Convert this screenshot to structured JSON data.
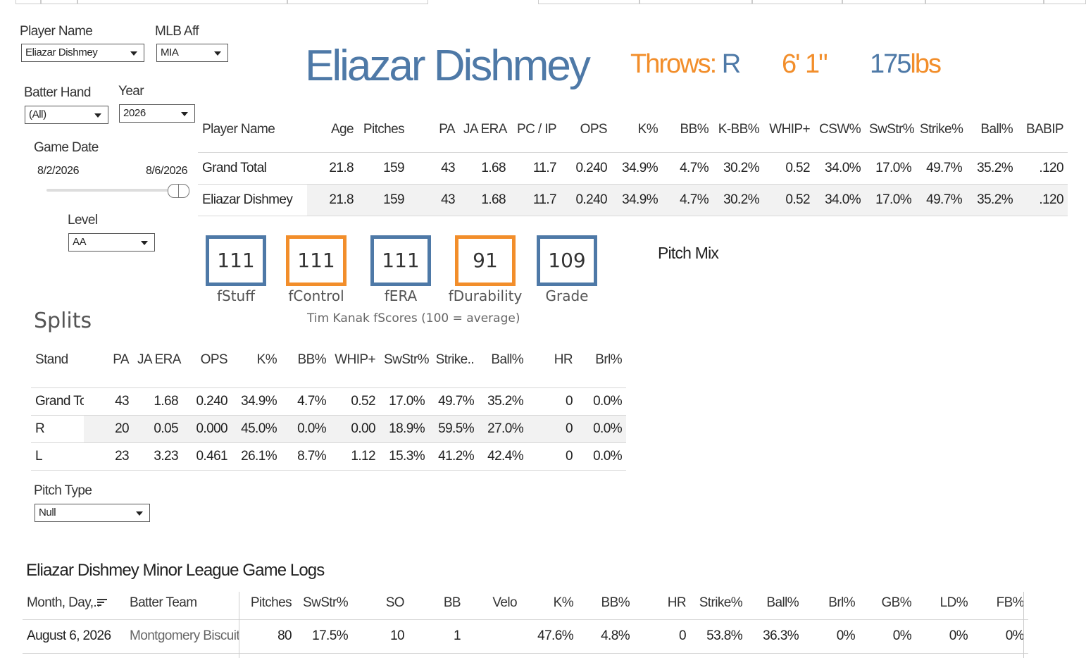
{
  "filters": {
    "player_name": {
      "label": "Player Name",
      "value": "Eliazar Dishmey"
    },
    "mlb_aff": {
      "label": "MLB Aff",
      "value": "MIA"
    },
    "batter_hand": {
      "label": "Batter Hand",
      "value": "(All)"
    },
    "year": {
      "label": "Year",
      "value": "2026"
    },
    "game_date": {
      "label": "Game Date",
      "start": "8/2/2026",
      "end": "8/6/2026"
    },
    "level": {
      "label": "Level",
      "value": "AA"
    },
    "pitch_type": {
      "label": "Pitch Type",
      "value": "Null"
    }
  },
  "player": {
    "name": "Eliazar Dishmey",
    "throws_label": "Throws:",
    "throws": "R",
    "height": "6' 1\"",
    "weight": "175",
    "weight_unit": "lbs"
  },
  "summary_table": {
    "columns": [
      "Player Name",
      "Age",
      "Pitches",
      "PA",
      "JA ERA",
      "PC / IP",
      "OPS",
      "K%",
      "BB%",
      "K-BB%",
      "WHIP+",
      "CSW%",
      "SwStr%",
      "Strike%",
      "Ball%",
      "BABIP"
    ],
    "rows": [
      [
        "Grand Total",
        "21.8",
        "159",
        "43",
        "1.68",
        "11.7",
        "0.240",
        "34.9%",
        "4.7%",
        "30.2%",
        "0.52",
        "34.0%",
        "17.0%",
        "49.7%",
        "35.2%",
        ".120"
      ],
      [
        "Eliazar Dishmey",
        "21.8",
        "159",
        "43",
        "1.68",
        "11.7",
        "0.240",
        "34.9%",
        "4.7%",
        "30.2%",
        "0.52",
        "34.0%",
        "17.0%",
        "49.7%",
        "35.2%",
        ".120"
      ]
    ]
  },
  "fscores": {
    "items": [
      {
        "label": "fStuff",
        "value": 111,
        "color": "#4e79a7"
      },
      {
        "label": "fControl",
        "value": 111,
        "color": "#f28e2b"
      },
      {
        "label": "fERA",
        "value": 111,
        "color": "#4e79a7"
      },
      {
        "label": "fDurability",
        "value": 91,
        "color": "#f28e2b"
      },
      {
        "label": "Grade",
        "value": 109,
        "color": "#4e79a7"
      }
    ],
    "caption": "Tim Kanak fScores (100 = average)"
  },
  "pitch_mix": {
    "title": "Pitch Mix"
  },
  "splits": {
    "title": "Splits",
    "columns": [
      "Stand",
      "PA",
      "JA ERA",
      "OPS",
      "K%",
      "BB%",
      "WHIP+",
      "SwStr%",
      "Strike..",
      "Ball%",
      "HR",
      "Brl%"
    ],
    "rows": [
      [
        "Grand To..",
        "43",
        "1.68",
        "0.240",
        "34.9%",
        "4.7%",
        "0.52",
        "17.0%",
        "49.7%",
        "35.2%",
        "0",
        "0.0%"
      ],
      [
        "R",
        "20",
        "0.05",
        "0.000",
        "45.0%",
        "0.0%",
        "0.00",
        "18.9%",
        "59.5%",
        "27.0%",
        "0",
        "0.0%"
      ],
      [
        "L",
        "23",
        "3.23",
        "0.461",
        "26.1%",
        "8.7%",
        "1.12",
        "15.3%",
        "41.2%",
        "42.4%",
        "0",
        "0.0%"
      ]
    ]
  },
  "game_logs": {
    "title": "Eliazar Dishmey Minor League Game Logs",
    "columns": [
      "Month, Day,..",
      "Batter Team",
      "Pitches",
      "SwStr%",
      "SO",
      "BB",
      "Velo",
      "K%",
      "BB%",
      "HR",
      "Strike%",
      "Ball%",
      "Brl%",
      "GB%",
      "LD%",
      "FB%"
    ],
    "rows": [
      [
        "August 6, 2026",
        "Montgomery Biscuits",
        "80",
        "17.5%",
        "10",
        "1",
        null,
        "47.6%",
        "4.8%",
        "0",
        "53.8%",
        "36.3%",
        "0%",
        "0%",
        "0%",
        "0%"
      ]
    ]
  }
}
